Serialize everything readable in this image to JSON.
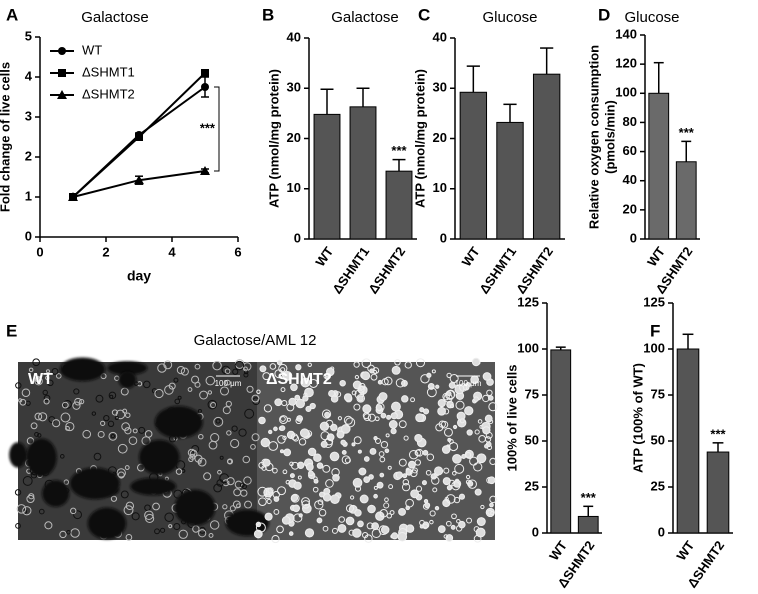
{
  "chart_data": [
    {
      "type": "line",
      "panel": "A",
      "title": "Galactose",
      "xlabel": "day",
      "ylabel": "Fold change of live cells",
      "x": [
        1,
        3,
        5
      ],
      "xlim": [
        0,
        6
      ],
      "xticks": [
        0,
        2,
        4,
        6
      ],
      "ylim": [
        0,
        5
      ],
      "yticks": [
        0,
        1,
        2,
        3,
        4,
        5
      ],
      "series": [
        {
          "name": "WT",
          "marker": "circle",
          "color": "#000000",
          "values": [
            1,
            2.55,
            3.75
          ],
          "errors": [
            0,
            0.05,
            0.25
          ]
        },
        {
          "name": "ΔSHMT1",
          "marker": "square",
          "color": "#000000",
          "values": [
            1,
            2.5,
            4.1
          ],
          "errors": [
            0,
            0.05,
            0.05
          ]
        },
        {
          "name": "ΔSHMT2",
          "marker": "triangle",
          "color": "#000000",
          "values": [
            1,
            1.42,
            1.65
          ],
          "errors": [
            0,
            0.1,
            0.05
          ]
        }
      ],
      "annotation": "***"
    },
    {
      "type": "bar",
      "panel": "B",
      "title": "Galactose",
      "ylabel": "ATP (nmol/mg protein)",
      "categories": [
        "WT",
        "ΔSHMT1",
        "ΔSHMT2"
      ],
      "values": [
        24.8,
        26.3,
        13.5
      ],
      "errors": [
        5,
        3.7,
        2.3
      ],
      "ylim": [
        0,
        40
      ],
      "yticks": [
        0,
        10,
        20,
        30,
        40
      ],
      "color": "#555555",
      "annotations": [
        null,
        null,
        "***"
      ]
    },
    {
      "type": "bar",
      "panel": "C",
      "title": "Glucose",
      "ylabel": "ATP (nmol/mg protein)",
      "categories": [
        "WT",
        "ΔSHMT1",
        "ΔSHMT2"
      ],
      "values": [
        29.2,
        23.2,
        32.8
      ],
      "errors": [
        5.2,
        3.6,
        5.2
      ],
      "ylim": [
        0,
        40
      ],
      "yticks": [
        0,
        10,
        20,
        30,
        40
      ],
      "color": "#555555"
    },
    {
      "type": "bar",
      "panel": "D",
      "title": "Glucose",
      "ylabel": [
        "Relative oxygen consumption",
        "(pmols/min)"
      ],
      "categories": [
        "WT",
        "ΔSHMT2"
      ],
      "values": [
        100,
        53
      ],
      "errors": [
        21,
        14
      ],
      "ylim": [
        0,
        140
      ],
      "yticks": [
        0,
        20,
        40,
        60,
        80,
        100,
        120,
        140
      ],
      "color": "#6a6a6a",
      "annotations": [
        null,
        "***"
      ]
    },
    {
      "type": "bar",
      "ylabel": "100% of live cells",
      "categories": [
        "WT",
        "ΔSHMT2"
      ],
      "values": [
        99.5,
        9
      ],
      "errors": [
        1.5,
        5.5
      ],
      "ylim": [
        0,
        125
      ],
      "yticks": [
        0,
        25,
        50,
        75,
        100,
        125
      ],
      "color": "#555555",
      "annotations": [
        null,
        "***"
      ]
    },
    {
      "type": "bar",
      "panel": "F",
      "ylabel": "ATP (100% of WT)",
      "categories": [
        "WT",
        "ΔSHMT2"
      ],
      "values": [
        100,
        44
      ],
      "errors": [
        8,
        5
      ],
      "ylim": [
        0,
        125
      ],
      "yticks": [
        0,
        25,
        50,
        75,
        100,
        125
      ],
      "color": "#555555",
      "annotations": [
        null,
        "***"
      ]
    }
  ],
  "images": {
    "panel": "E",
    "title": "Galactose/AML 12",
    "panels": [
      {
        "label": "WT",
        "scale": "100 μm"
      },
      {
        "label": "ΔSHMT2",
        "scale": "100 μm"
      }
    ]
  }
}
